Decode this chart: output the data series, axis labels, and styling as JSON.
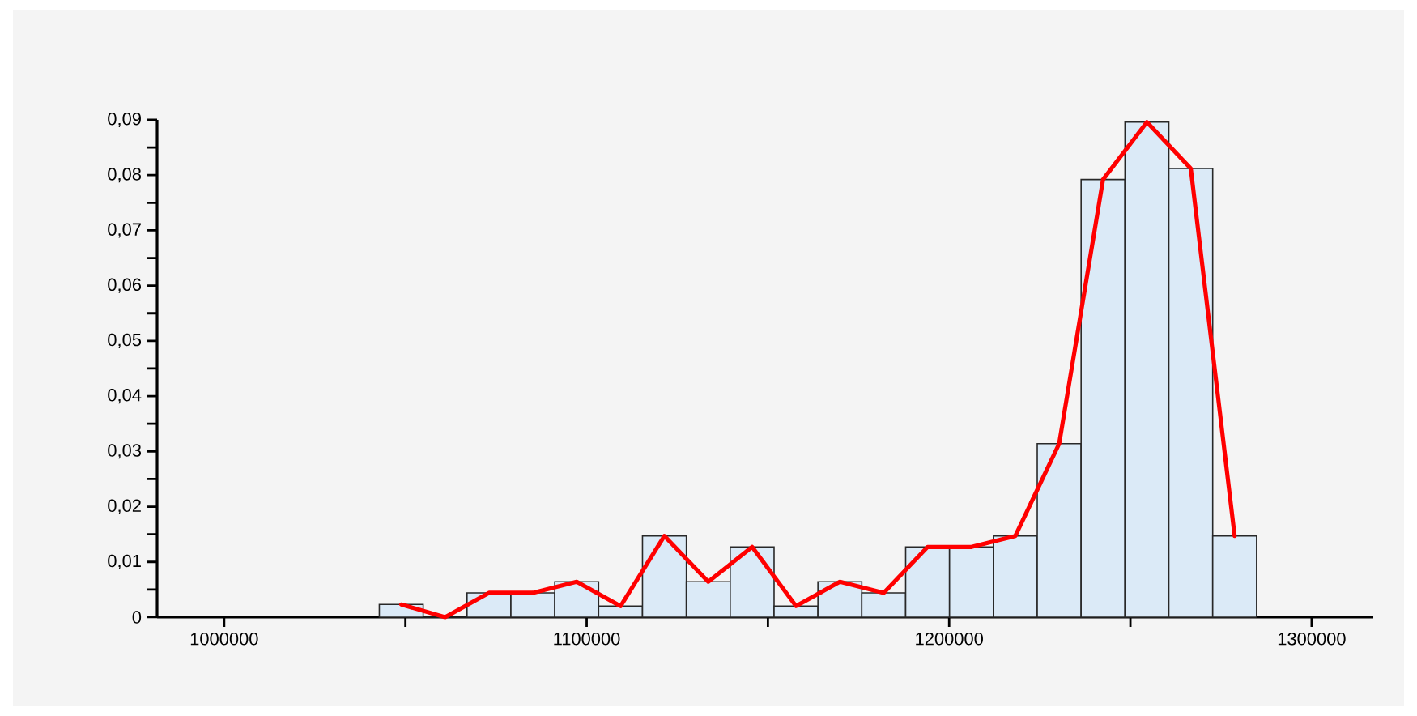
{
  "chart_data": {
    "type": "histogram",
    "bins": [
      1042800,
      1054900,
      1067000,
      1079100,
      1091200,
      1103300,
      1115400,
      1127500,
      1139600,
      1151700,
      1163800,
      1175900,
      1188000,
      1200100,
      1212200,
      1224300,
      1236400,
      1248500,
      1260600,
      1272700,
      1284800
    ],
    "values": [
      0.0023,
      0,
      0.0044,
      0.0044,
      0.0064,
      0.002,
      0.0147,
      0.0064,
      0.0127,
      0.002,
      0.0064,
      0.0044,
      0.0127,
      0.0127,
      0.0147,
      0.0314,
      0.0792,
      0.0896,
      0.0812,
      0.0147
    ],
    "color": "#dbeaf7",
    "series": [
      {
        "type": "line",
        "color": "#ff0000",
        "x": [
          1048850,
          1060950,
          1073050,
          1085150,
          1097250,
          1109350,
          1121450,
          1133550,
          1145650,
          1157750,
          1169850,
          1181950,
          1194050,
          1206150,
          1218250,
          1230350,
          1242450,
          1254550,
          1266650,
          1278750
        ],
        "values": [
          0.0023,
          0,
          0.0044,
          0.0044,
          0.0064,
          0.002,
          0.0147,
          0.0064,
          0.0127,
          0.002,
          0.0064,
          0.0044,
          0.0127,
          0.0127,
          0.0147,
          0.0314,
          0.0792,
          0.0896,
          0.0812,
          0.0147
        ]
      }
    ],
    "xlim": [
      981500,
      1317000
    ],
    "ylim": [
      0,
      0.09
    ],
    "xticks": [
      1000000,
      {
        "value": 1050000,
        "label": null
      },
      1100000,
      {
        "value": 1150000,
        "label": null
      },
      1200000,
      {
        "value": 1250000,
        "label": null
      },
      1300000
    ],
    "yticks": [
      0,
      {
        "value": 0.005,
        "label": null
      },
      {
        "value": 0.01,
        "label": "0,01"
      },
      {
        "value": 0.015,
        "label": null
      },
      {
        "value": 0.02,
        "label": "0,02"
      },
      {
        "value": 0.025,
        "label": null
      },
      {
        "value": 0.03,
        "label": "0,03"
      },
      {
        "value": 0.035,
        "label": null
      },
      {
        "value": 0.04,
        "label": "0,04"
      },
      {
        "value": 0.045,
        "label": null
      },
      {
        "value": 0.05,
        "label": "0,05"
      },
      {
        "value": 0.055,
        "label": null
      },
      {
        "value": 0.06,
        "label": "0,06"
      },
      {
        "value": 0.065,
        "label": null
      },
      {
        "value": 0.07,
        "label": "0,07"
      },
      {
        "value": 0.075,
        "label": null
      },
      {
        "value": 0.08,
        "label": "0,08"
      },
      {
        "value": 0.085,
        "label": null
      },
      {
        "value": 0.09,
        "label": "0,09"
      }
    ]
  }
}
